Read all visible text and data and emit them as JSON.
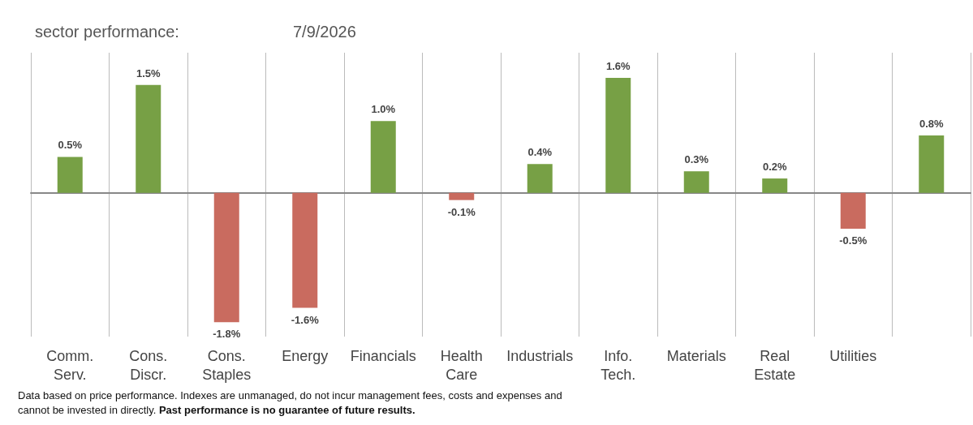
{
  "chart_data": {
    "type": "bar",
    "title": "sector performance:",
    "subtitle": "7/9/2026",
    "categories": [
      "Comm.\nServ.",
      "Cons.\nDiscr.",
      "Cons.\nStaples",
      "Energy",
      "Financials",
      "Health\nCare",
      "Industrials",
      "Info.\nTech.",
      "Materials",
      "Real\nEstate",
      "Utilities",
      null
    ],
    "values": [
      0.5,
      1.5,
      -1.8,
      -1.6,
      1.0,
      -0.1,
      0.4,
      1.6,
      0.3,
      0.2,
      -0.5,
      0.8
    ],
    "colors": [
      "#77a045",
      "#77a045",
      "#c96b5f",
      "#c96b5f",
      "#77a045",
      "#c96b5f",
      "#77a045",
      "#77a045",
      "#77a045",
      "#77a045",
      "#c96b5f",
      "#77a045"
    ],
    "value_labels": [
      "0.5%",
      "1.5%",
      "-1.8%",
      "-1.6%",
      "1.0%",
      "-0.1%",
      "0.4%",
      "1.6%",
      "0.3%",
      "0.2%",
      "-0.5%",
      "0.8%"
    ],
    "ylim": [
      -2.0,
      1.95
    ],
    "tick_labels": "x",
    "grid": "x",
    "annotations": [
      "Data based on price performance. Indexes are unmanaged, do not incur management fees, costs and expenses and",
      "cannot be invested in directly.",
      "Past performance is no guarantee of future results."
    ]
  }
}
